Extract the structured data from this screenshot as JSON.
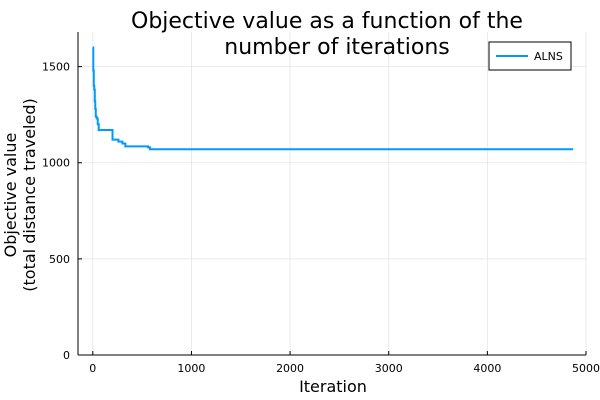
{
  "chart_data": {
    "type": "line",
    "title_lines": [
      "Objective value as a function of the",
      "number of iterations"
    ],
    "xlabel": "Iteration",
    "ylabel_lines": [
      "Objective value",
      "(total distance traveled)"
    ],
    "xlim": [
      -150,
      5000
    ],
    "ylim": [
      0,
      1680
    ],
    "xticks": [
      0,
      1000,
      2000,
      3000,
      4000,
      5000
    ],
    "yticks": [
      0,
      500,
      1000,
      1500
    ],
    "xtick_labels": [
      "0",
      "1000",
      "2000",
      "3000",
      "4000",
      "5000"
    ],
    "ytick_labels": [
      "0",
      "500",
      "1000",
      "1500"
    ],
    "grid": true,
    "legend_position": "top-right",
    "series": [
      {
        "name": "ALNS",
        "color": "#009af9",
        "x": [
          0,
          5,
          5,
          10,
          10,
          15,
          15,
          20,
          20,
          25,
          25,
          30,
          30,
          40,
          40,
          50,
          50,
          60,
          60,
          200,
          200,
          260,
          260,
          300,
          300,
          330,
          330,
          560,
          560,
          580,
          580,
          4870
        ],
        "y": [
          1600,
          1600,
          1480,
          1480,
          1400,
          1400,
          1380,
          1380,
          1320,
          1320,
          1280,
          1280,
          1240,
          1240,
          1230,
          1230,
          1200,
          1200,
          1170,
          1170,
          1120,
          1120,
          1110,
          1110,
          1100,
          1100,
          1085,
          1085,
          1080,
          1080,
          1070,
          1070
        ]
      }
    ]
  }
}
